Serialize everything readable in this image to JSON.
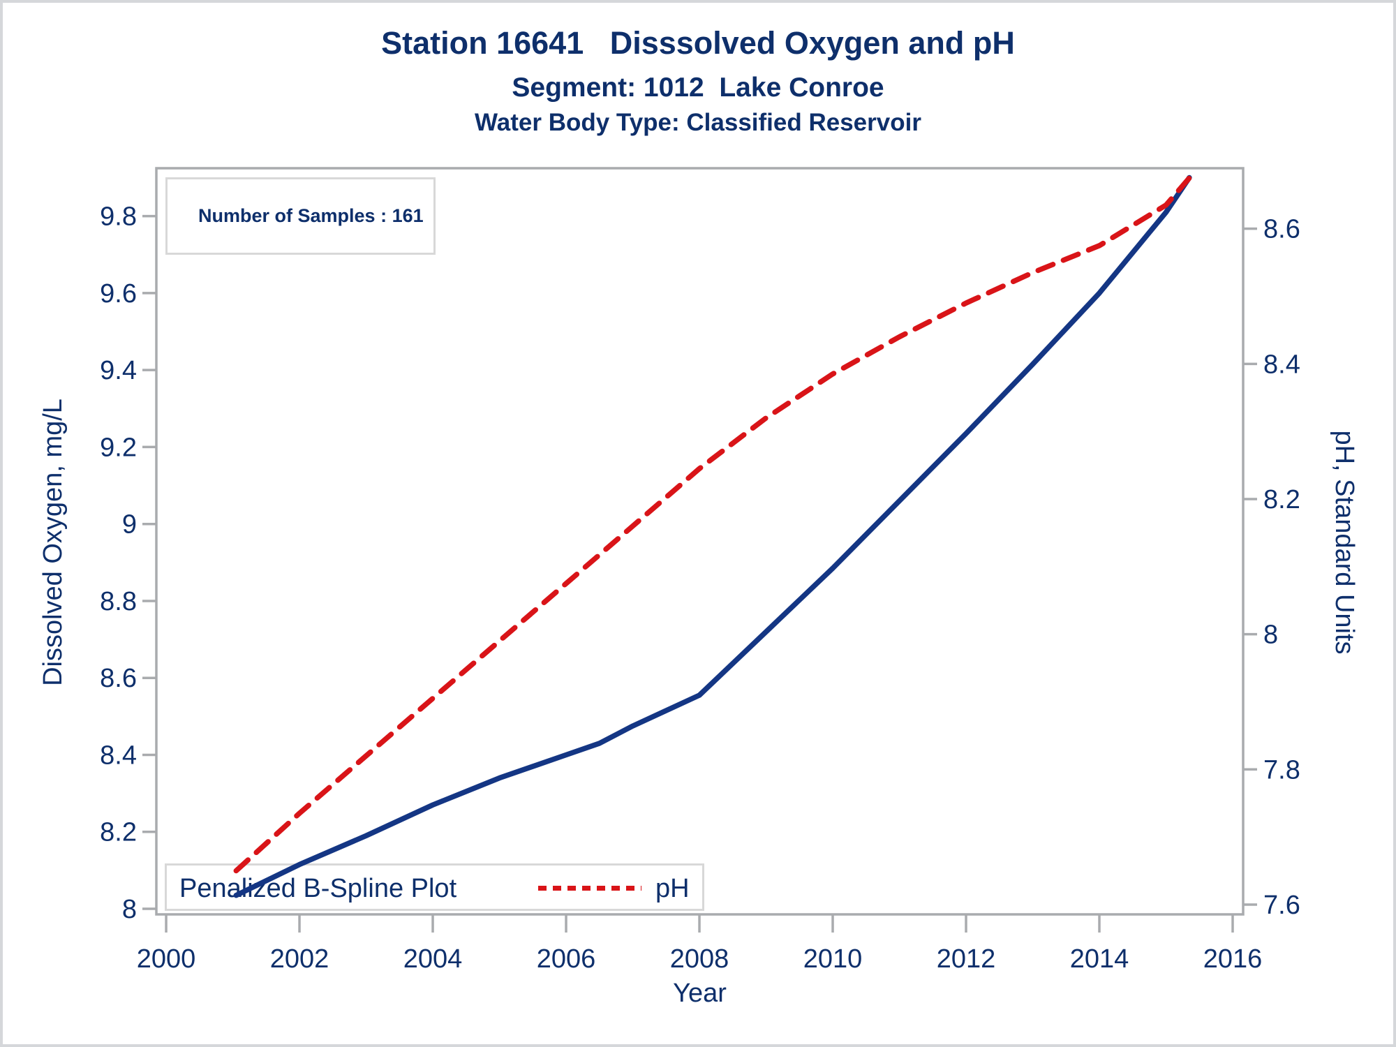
{
  "figure": {
    "titles": [
      "Station 16641   Disssolved Oxygen and pH",
      "Segment: 1012  Lake Conroe",
      "Water Body Type: Classified Reservoir"
    ]
  },
  "inset": {
    "label": "Number of Samples : 161"
  },
  "legend": {
    "series_label": "Penalized B-Spline Plot",
    "ph_label": "pH"
  },
  "axes": {
    "x_title": "Year",
    "left_title": "Dissolved Oxygen, mg/L",
    "right_title": "pH, Standard Units"
  },
  "colors": {
    "text_navy": "#0E2F6B",
    "do_line": "#143684",
    "ph_line": "#D91418",
    "axis_gray": "#A9ABAE",
    "box_border_gray": "#D8D8D8",
    "figure_border": "#D5D7DA"
  },
  "chart_data": {
    "type": "line",
    "title": "Station 16641 Disssolved Oxygen and pH",
    "subtitle": "Segment: 1012 Lake Conroe — Water Body Type: Classified Reservoir",
    "annotation": "Number of Samples : 161",
    "grid": false,
    "legend_position": "inside bottom-left",
    "x_axis": {
      "label": "Year",
      "min": 1999.853,
      "max": 2016.157,
      "tick_values": [
        2000,
        2002,
        2004,
        2006,
        2008,
        2010,
        2012,
        2014,
        2016
      ],
      "tick_labels": [
        "2000",
        "2002",
        "2004",
        "2006",
        "2008",
        "2010",
        "2012",
        "2014",
        "2016"
      ]
    },
    "left_axis": {
      "label": "Dissolved Oxygen, mg/L",
      "min": 7.9855,
      "max": 9.9245,
      "tick_values": [
        8,
        8.2,
        8.4,
        8.6,
        8.8,
        9,
        9.2,
        9.4,
        9.6,
        9.8
      ],
      "tick_labels": [
        "8",
        "8.2",
        "8.4",
        "8.6",
        "8.8",
        "9",
        "9.2",
        "9.4",
        "9.6",
        "9.8"
      ]
    },
    "right_axis": {
      "label": "pH, Standard Units",
      "min": 7.5855,
      "max": 8.6895,
      "tick_values": [
        7.6,
        7.8,
        8,
        8.2,
        8.4,
        8.6
      ],
      "tick_labels": [
        "7.6",
        "7.8",
        "8",
        "8.2",
        "8.4",
        "8.6"
      ]
    },
    "series": [
      {
        "name": "Penalized B-Spline Plot",
        "axis": "left",
        "style": "solid",
        "color": "#143684",
        "points": [
          [
            2001.05,
            8.035
          ],
          [
            2002,
            8.115
          ],
          [
            2003,
            8.19
          ],
          [
            2004,
            8.27
          ],
          [
            2005,
            8.34
          ],
          [
            2006,
            8.4
          ],
          [
            2006.5,
            8.43
          ],
          [
            2007,
            8.475
          ],
          [
            2008,
            8.555
          ],
          [
            2009,
            8.72
          ],
          [
            2010,
            8.885
          ],
          [
            2011,
            9.06
          ],
          [
            2012,
            9.235
          ],
          [
            2013,
            9.415
          ],
          [
            2014,
            9.6
          ],
          [
            2015,
            9.81
          ],
          [
            2015.35,
            9.9
          ]
        ]
      },
      {
        "name": "pH",
        "axis": "right",
        "style": "dashed",
        "color": "#D91418",
        "points": [
          [
            2001.05,
            7.65
          ],
          [
            2002,
            7.735
          ],
          [
            2003,
            7.82
          ],
          [
            2004,
            7.905
          ],
          [
            2005,
            7.99
          ],
          [
            2006,
            8.075
          ],
          [
            2007,
            8.16
          ],
          [
            2008,
            8.245
          ],
          [
            2009,
            8.32
          ],
          [
            2010,
            8.385
          ],
          [
            2011,
            8.44
          ],
          [
            2012,
            8.49
          ],
          [
            2013,
            8.535
          ],
          [
            2014,
            8.575
          ],
          [
            2015,
            8.635
          ],
          [
            2015.35,
            8.675
          ]
        ]
      }
    ]
  }
}
